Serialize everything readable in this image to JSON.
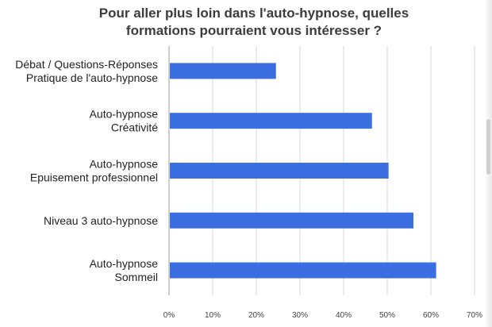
{
  "chart_data": {
    "type": "bar",
    "orientation": "horizontal",
    "title_lines": [
      "Pour aller plus loin dans l'auto-hypnose, quelles",
      "formations pourraient vous intéresser ?"
    ],
    "categories": [
      [
        "Débat / Questions-Réponses",
        "Pratique de l'auto-hypnose"
      ],
      [
        "Auto-hypnose",
        "Créativité"
      ],
      [
        "Auto-hypnose",
        "Epuisement professionnel"
      ],
      [
        "Niveau 3 auto-hypnose"
      ],
      [
        "Auto-hypnose",
        "Sommeil"
      ]
    ],
    "values": [
      24.5,
      46.5,
      50.3,
      56.0,
      61.2
    ],
    "x_ticks": [
      "0%",
      "10%",
      "20%",
      "30%",
      "40%",
      "50%",
      "60%",
      "70%"
    ],
    "xlim": [
      0,
      70
    ],
    "grid": true,
    "bar_color": "#3b6ee0",
    "legend": "none"
  }
}
